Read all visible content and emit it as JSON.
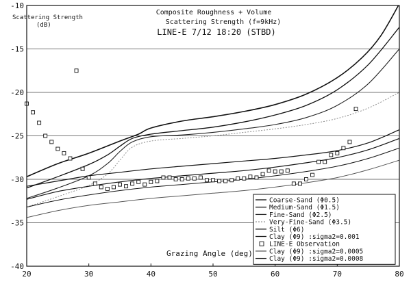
{
  "chart_data": {
    "type": "line",
    "title_lines": [
      "Composite Roughness + Volume",
      "Scattering Strength  (f=9kHz)",
      "LINE-E 7/12 18:20 (STBD)"
    ],
    "ylabel_lines": [
      "Scattering Strength",
      "(dB)"
    ],
    "xlabel": "Grazing Angle (deg)",
    "xlim": [
      20,
      80
    ],
    "ylim": [
      -40,
      -10
    ],
    "xticks": [
      "20",
      "30",
      "40",
      "50",
      "60",
      "70",
      "80"
    ],
    "yticks": [
      "-10",
      "-15",
      "-20",
      "-25",
      "-30",
      "-35",
      "-40"
    ],
    "grid": "horizontal",
    "legend_position": "bottom-right",
    "series": [
      {
        "name": "Coarse-Sand (Φ0.5)",
        "style": "solid",
        "color": "#111111",
        "width": 1.6,
        "x": [
          20,
          25,
          30,
          35,
          38,
          40,
          45,
          50,
          55,
          60,
          65,
          70,
          74,
          77,
          80
        ],
        "y": [
          -29.7,
          -28.2,
          -27.0,
          -25.6,
          -24.8,
          -24.1,
          -23.3,
          -22.8,
          -22.2,
          -21.4,
          -20.2,
          -18.3,
          -16.0,
          -13.5,
          -9.8
        ]
      },
      {
        "name": "Medium-Sand (Φ1.5)",
        "style": "solid",
        "color": "#111111",
        "width": 1.3,
        "x": [
          20,
          25,
          30,
          33,
          35,
          37,
          40,
          45,
          50,
          55,
          60,
          65,
          70,
          75,
          80
        ],
        "y": [
          -31.0,
          -29.7,
          -28.3,
          -27.2,
          -26.2,
          -25.3,
          -24.8,
          -24.4,
          -24.0,
          -23.4,
          -22.6,
          -21.5,
          -19.7,
          -16.8,
          -12.5
        ]
      },
      {
        "name": "Fine-Sand (Φ2.5)",
        "style": "solid",
        "color": "#222222",
        "width": 1.1,
        "x": [
          20,
          25,
          30,
          33,
          35,
          37,
          40,
          45,
          50,
          55,
          60,
          65,
          70,
          75,
          80
        ],
        "y": [
          -32.2,
          -31.0,
          -29.6,
          -28.2,
          -26.8,
          -25.7,
          -25.1,
          -24.9,
          -24.6,
          -24.2,
          -23.7,
          -22.9,
          -21.5,
          -19.0,
          -15.0
        ]
      },
      {
        "name": "Very-Fine-Sand (Φ3.5)",
        "style": "dashed",
        "color": "#8a8a8a",
        "width": 1.0,
        "x": [
          20,
          25,
          30,
          33,
          35,
          37,
          40,
          45,
          50,
          55,
          60,
          65,
          70,
          75,
          80
        ],
        "y": [
          -33.2,
          -32.0,
          -30.7,
          -29.4,
          -27.8,
          -26.3,
          -25.6,
          -25.3,
          -25.0,
          -24.6,
          -24.2,
          -23.7,
          -23.0,
          -21.8,
          -20.0
        ]
      },
      {
        "name": "Silt (Φ6)",
        "style": "solid",
        "color": "#111111",
        "width": 1.2,
        "x": [
          20,
          25,
          30,
          35,
          40,
          45,
          50,
          55,
          60,
          65,
          70,
          75,
          80
        ],
        "y": [
          -30.8,
          -30.2,
          -29.6,
          -29.2,
          -28.8,
          -28.5,
          -28.2,
          -27.9,
          -27.6,
          -27.2,
          -26.7,
          -25.8,
          -24.3
        ]
      },
      {
        "name": "Clay (Φ9) :sigma2=0.001",
        "style": "solid",
        "color": "#111111",
        "width": 1.2,
        "x": [
          20,
          25,
          30,
          35,
          40,
          45,
          50,
          55,
          60,
          65,
          70,
          75,
          80
        ],
        "y": [
          -32.3,
          -31.4,
          -30.8,
          -30.3,
          -29.9,
          -29.6,
          -29.3,
          -29.0,
          -28.6,
          -28.1,
          -27.5,
          -26.6,
          -25.3
        ]
      },
      {
        "name": "Clay (Φ9) :sigma2=0.0005",
        "style": "solid",
        "color": "#555555",
        "width": 1.0,
        "x": [
          20,
          25,
          30,
          35,
          40,
          45,
          50,
          55,
          60,
          65,
          70,
          75,
          80
        ],
        "y": [
          -34.4,
          -33.6,
          -33.0,
          -32.6,
          -32.2,
          -31.9,
          -31.6,
          -31.3,
          -30.9,
          -30.4,
          -29.8,
          -28.9,
          -27.8
        ]
      },
      {
        "name": "Clay (Φ9) :sigma2=0.0008",
        "style": "solid",
        "color": "#111111",
        "width": 1.0,
        "x": [
          20,
          25,
          30,
          35,
          40,
          45,
          50,
          55,
          60,
          65,
          70,
          75,
          80
        ],
        "y": [
          -33.2,
          -32.4,
          -31.8,
          -31.3,
          -30.9,
          -30.6,
          -30.3,
          -30.0,
          -29.6,
          -29.1,
          -28.5,
          -27.6,
          -26.4
        ]
      }
    ],
    "observation": {
      "name": "LINE-E Observation",
      "marker": "open-square",
      "x": [
        20,
        21,
        22,
        23,
        24,
        25,
        26,
        27,
        28,
        29,
        30,
        31,
        32,
        33,
        34,
        35,
        36,
        37,
        38,
        39,
        40,
        41,
        42,
        43,
        44,
        45,
        46,
        47,
        48,
        49,
        50,
        51,
        52,
        53,
        54,
        55,
        56,
        57,
        58,
        59,
        60,
        61,
        62,
        63,
        64,
        65,
        66,
        67,
        68,
        69,
        70,
        71,
        72,
        73
      ],
      "y": [
        -21.3,
        -22.3,
        -23.5,
        -25.0,
        -25.7,
        -26.5,
        -27.0,
        -27.6,
        -17.5,
        -28.8,
        -29.8,
        -30.5,
        -30.9,
        -31.1,
        -30.9,
        -30.6,
        -30.8,
        -30.5,
        -30.3,
        -30.6,
        -30.3,
        -30.2,
        -29.8,
        -29.8,
        -30.0,
        -30.0,
        -29.9,
        -29.9,
        -29.8,
        -30.1,
        -30.1,
        -30.2,
        -30.2,
        -30.1,
        -29.9,
        -29.9,
        -29.7,
        -29.8,
        -29.4,
        -29.0,
        -29.1,
        -29.1,
        -29.0,
        -30.5,
        -30.5,
        -30.0,
        -29.5,
        -28.0,
        -28.0,
        -27.2,
        -27.0,
        -26.4,
        -25.7,
        -21.9
      ]
    },
    "legend_entries": [
      {
        "label": "Coarse-Sand (Φ0.5)",
        "swatch": "line",
        "color": "#111111",
        "style": "solid"
      },
      {
        "label": "Medium-Sand (Φ1.5)",
        "swatch": "line",
        "color": "#111111",
        "style": "solid"
      },
      {
        "label": "Fine-Sand (Φ2.5)",
        "swatch": "line",
        "color": "#222222",
        "style": "solid"
      },
      {
        "label": "Very-Fine-Sand (Φ3.5)",
        "swatch": "line",
        "color": "#8a8a8a",
        "style": "dashed"
      },
      {
        "label": "Silt (Φ6)",
        "swatch": "line",
        "color": "#111111",
        "style": "solid"
      },
      {
        "label": "Clay (Φ9) :sigma2=0.001",
        "swatch": "line",
        "color": "#111111",
        "style": "solid"
      },
      {
        "label": "LINE-E Observation",
        "swatch": "square",
        "color": "#111111",
        "style": "solid"
      },
      {
        "label": "Clay (Φ9) :sigma2=0.0005",
        "swatch": "line",
        "color": "#555555",
        "style": "solid"
      },
      {
        "label": "Clay (Φ9) :sigma2=0.0008",
        "swatch": "line",
        "color": "#111111",
        "style": "solid"
      }
    ]
  }
}
